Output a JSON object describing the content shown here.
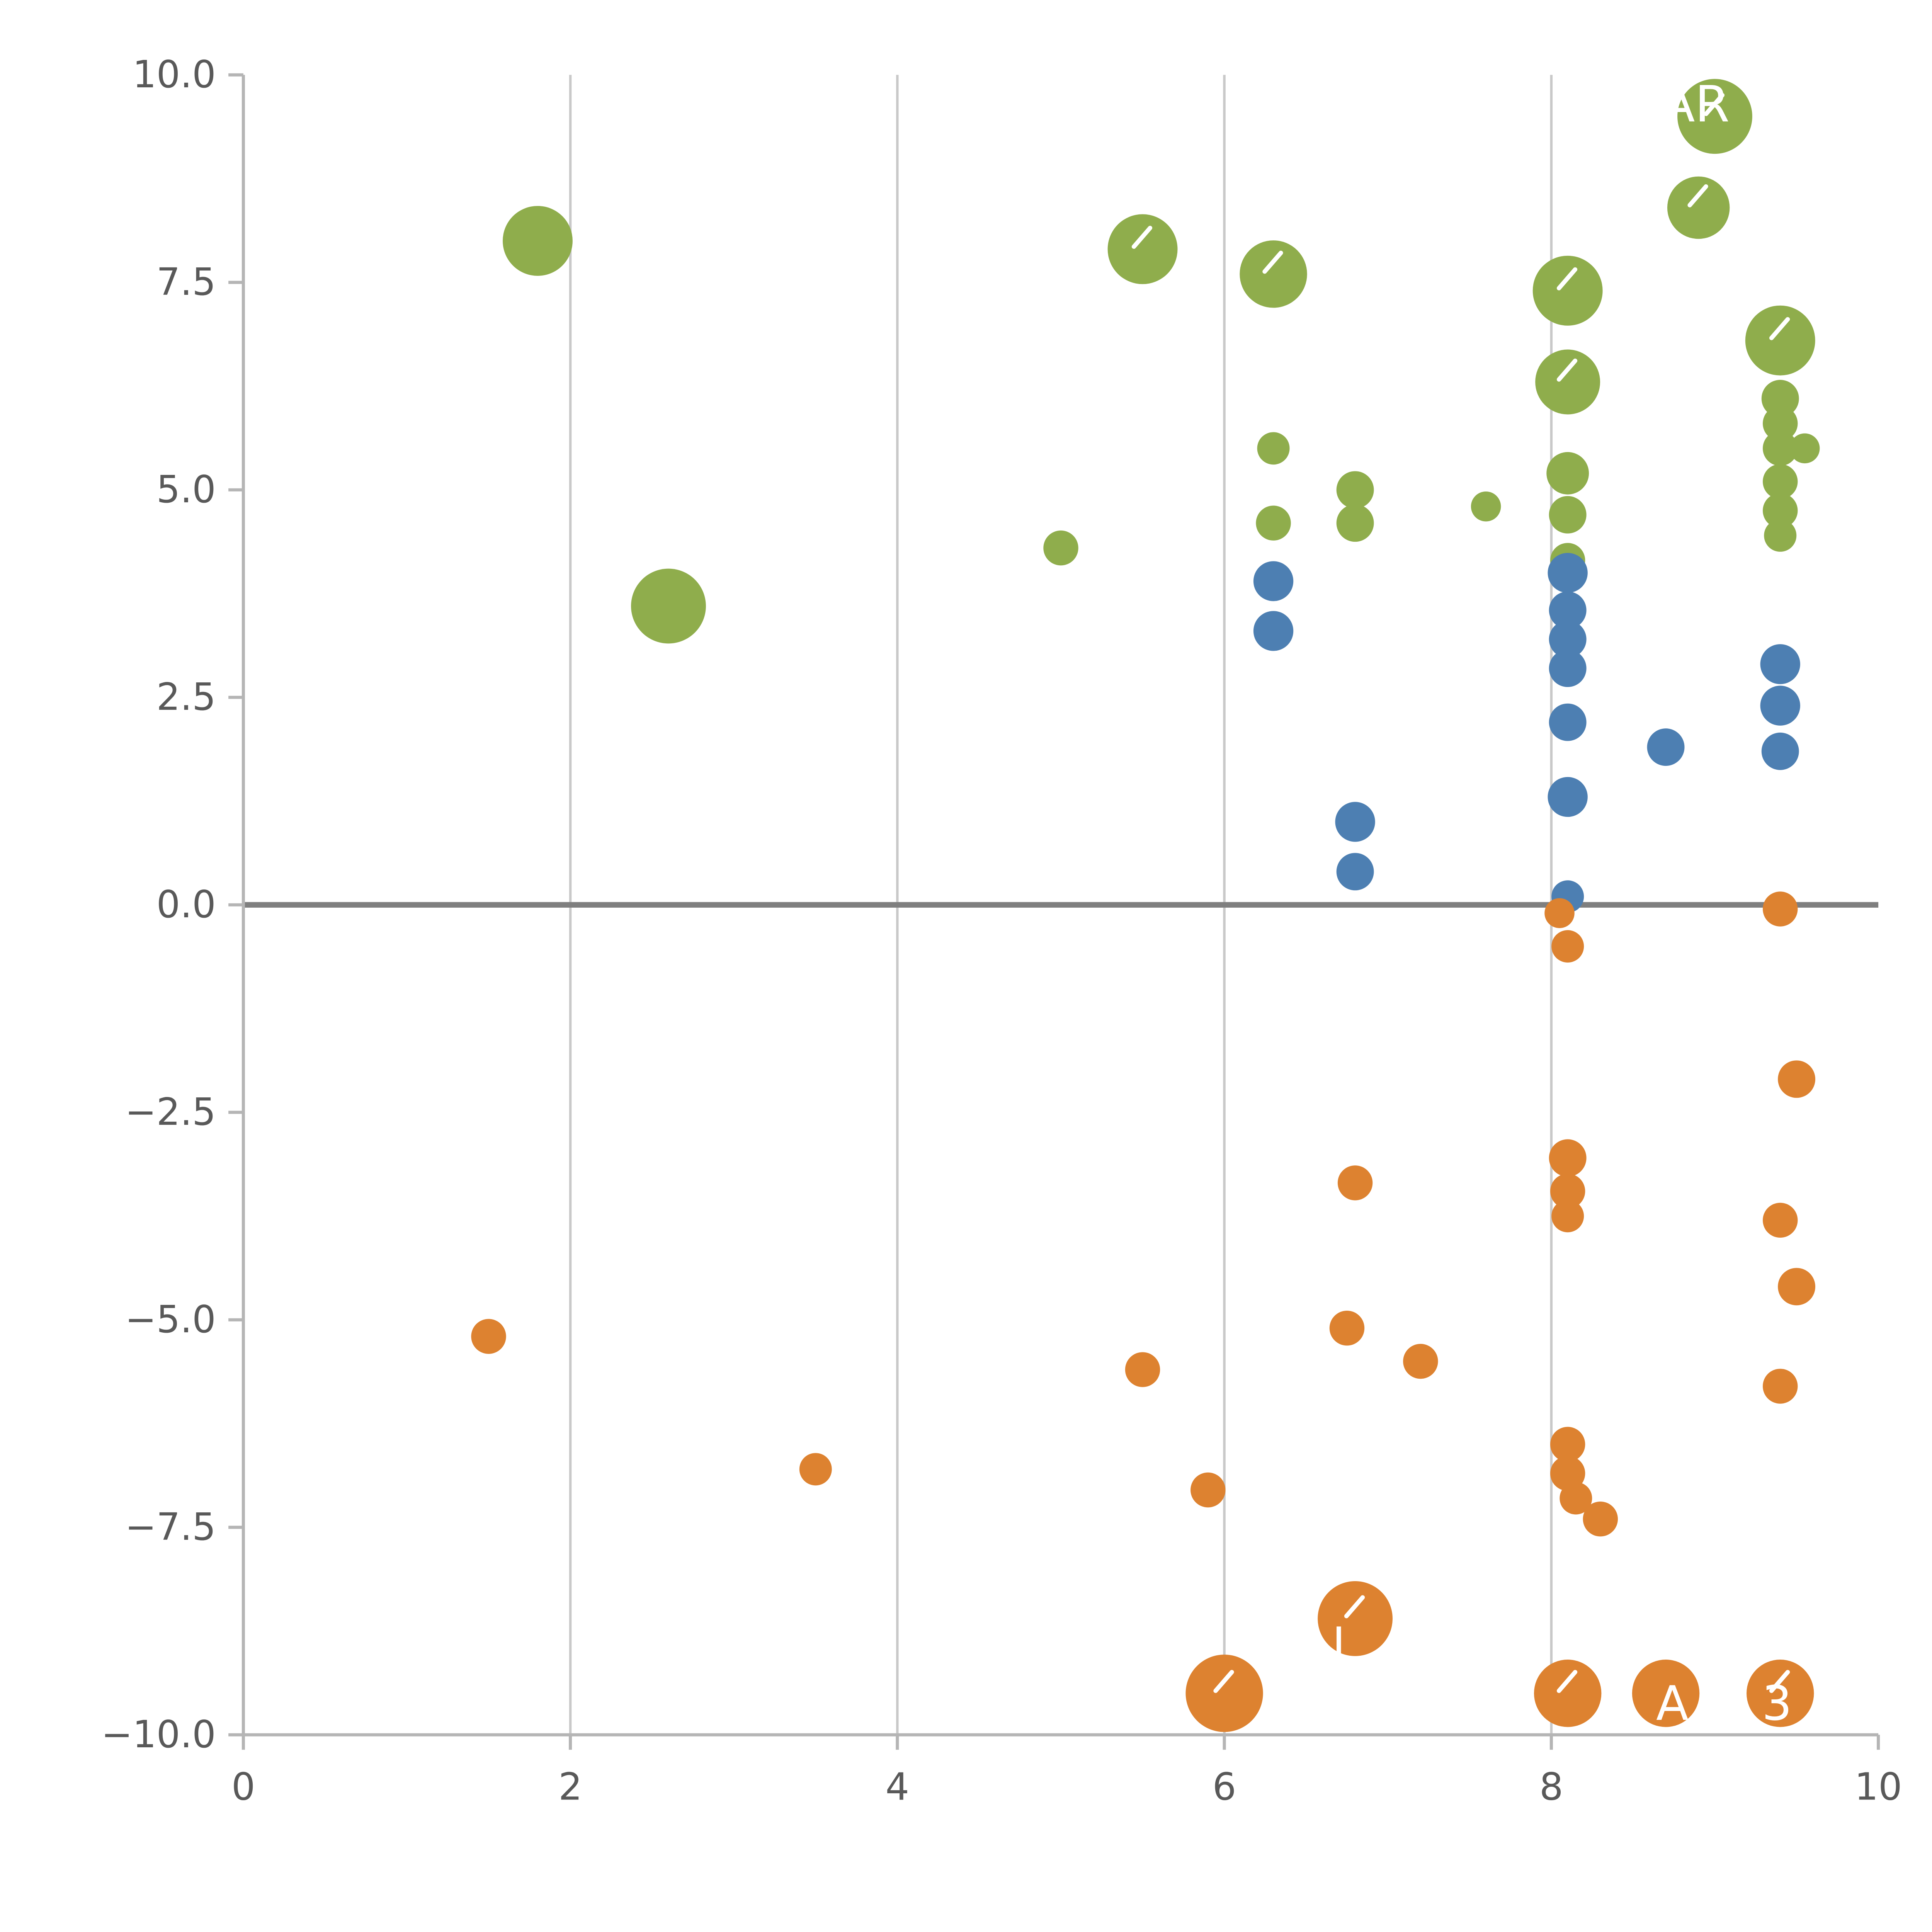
{
  "chart_data": {
    "type": "scatter",
    "title": "",
    "xlabel": "",
    "ylabel": "",
    "xlim": [
      0,
      10
    ],
    "ylim": [
      -10,
      10
    ],
    "x_tick_values": [
      0,
      2,
      4,
      6,
      8,
      10
    ],
    "x_tick_labels": [
      "0",
      "2",
      "4",
      "6",
      "8",
      "10"
    ],
    "y_tick_values": [
      -10,
      -7.5,
      -5,
      -2.5,
      0,
      2.5,
      5,
      7.5,
      10
    ],
    "y_tick_labels": [
      "−10.0",
      "−7.5",
      "−5.0",
      "−2.5",
      "0.0",
      "2.5",
      "5.0",
      "7.5",
      "10.0"
    ],
    "grid": {
      "vertical_at": [
        2,
        4,
        6,
        8
      ],
      "horizontal": false
    },
    "zero_line_y": 0,
    "legend": "none",
    "colors": {
      "green": "#8fad4c",
      "blue": "#4d7fb2",
      "orange": "#dd8230",
      "grid": "#c9c9c9",
      "spine": "#b5b5b5",
      "zero_line": "#7f7f7f",
      "tick_text": "#595959",
      "bubble_mark": "#ffffff"
    },
    "series": [
      {
        "name": "green",
        "color": "#8fad4c",
        "points": [
          {
            "x": 1.8,
            "y": 8.0,
            "r": 28,
            "mark": false
          },
          {
            "x": 2.6,
            "y": 3.6,
            "r": 30,
            "mark": false
          },
          {
            "x": 5.0,
            "y": 4.3,
            "r": 14,
            "mark": false
          },
          {
            "x": 5.5,
            "y": 7.9,
            "r": 28,
            "mark": true
          },
          {
            "x": 6.3,
            "y": 7.6,
            "r": 27,
            "mark": true
          },
          {
            "x": 6.3,
            "y": 5.5,
            "r": 13,
            "mark": false
          },
          {
            "x": 6.3,
            "y": 4.6,
            "r": 14,
            "mark": false
          },
          {
            "x": 6.8,
            "y": 5.0,
            "r": 15,
            "mark": false
          },
          {
            "x": 6.8,
            "y": 4.6,
            "r": 15,
            "mark": false
          },
          {
            "x": 7.6,
            "y": 4.8,
            "r": 12,
            "mark": false
          },
          {
            "x": 8.1,
            "y": 7.4,
            "r": 28,
            "mark": true
          },
          {
            "x": 8.1,
            "y": 6.3,
            "r": 26,
            "mark": true
          },
          {
            "x": 8.1,
            "y": 5.2,
            "r": 17,
            "mark": false
          },
          {
            "x": 8.1,
            "y": 4.7,
            "r": 15,
            "mark": false
          },
          {
            "x": 8.1,
            "y": 4.15,
            "r": 14,
            "mark": false
          },
          {
            "x": 8.9,
            "y": 8.4,
            "r": 25,
            "mark": true
          },
          {
            "x": 9.0,
            "y": 9.5,
            "r": 30,
            "mark": true
          },
          {
            "x": 9.4,
            "y": 6.8,
            "r": 28,
            "mark": true
          },
          {
            "x": 9.4,
            "y": 6.1,
            "r": 15,
            "mark": false
          },
          {
            "x": 9.4,
            "y": 5.8,
            "r": 14,
            "mark": false
          },
          {
            "x": 9.4,
            "y": 5.5,
            "r": 14,
            "mark": false
          },
          {
            "x": 9.55,
            "y": 5.5,
            "r": 12,
            "mark": false
          },
          {
            "x": 9.4,
            "y": 5.1,
            "r": 14,
            "mark": false
          },
          {
            "x": 9.4,
            "y": 4.75,
            "r": 14,
            "mark": false
          },
          {
            "x": 9.4,
            "y": 4.45,
            "r": 13,
            "mark": false
          }
        ]
      },
      {
        "name": "blue",
        "color": "#4d7fb2",
        "points": [
          {
            "x": 6.3,
            "y": 3.9,
            "r": 16,
            "mark": false
          },
          {
            "x": 6.3,
            "y": 3.3,
            "r": 16,
            "mark": false
          },
          {
            "x": 6.8,
            "y": 1.0,
            "r": 16,
            "mark": false
          },
          {
            "x": 6.8,
            "y": 0.4,
            "r": 15,
            "mark": false
          },
          {
            "x": 8.1,
            "y": 4.0,
            "r": 16,
            "mark": false
          },
          {
            "x": 8.1,
            "y": 3.55,
            "r": 15,
            "mark": false
          },
          {
            "x": 8.1,
            "y": 3.2,
            "r": 15,
            "mark": false
          },
          {
            "x": 8.1,
            "y": 2.85,
            "r": 15,
            "mark": false
          },
          {
            "x": 8.1,
            "y": 2.2,
            "r": 15,
            "mark": false
          },
          {
            "x": 8.1,
            "y": 1.3,
            "r": 16,
            "mark": false
          },
          {
            "x": 8.1,
            "y": 0.1,
            "r": 13,
            "mark": false
          },
          {
            "x": 8.7,
            "y": 1.9,
            "r": 15,
            "mark": false
          },
          {
            "x": 9.4,
            "y": 2.9,
            "r": 16,
            "mark": false
          },
          {
            "x": 9.4,
            "y": 2.4,
            "r": 16,
            "mark": false
          },
          {
            "x": 9.4,
            "y": 1.85,
            "r": 15,
            "mark": false
          }
        ]
      },
      {
        "name": "orange",
        "color": "#dd8230",
        "points": [
          {
            "x": 1.5,
            "y": -5.2,
            "r": 14,
            "mark": false
          },
          {
            "x": 3.5,
            "y": -6.8,
            "r": 13,
            "mark": false
          },
          {
            "x": 5.5,
            "y": -5.6,
            "r": 14,
            "mark": false
          },
          {
            "x": 5.9,
            "y": -7.05,
            "r": 14,
            "mark": false
          },
          {
            "x": 6.0,
            "y": -9.5,
            "r": 31,
            "mark": true
          },
          {
            "x": 6.8,
            "y": -3.35,
            "r": 14,
            "mark": false
          },
          {
            "x": 6.75,
            "y": -5.1,
            "r": 14,
            "mark": false
          },
          {
            "x": 7.2,
            "y": -5.5,
            "r": 14,
            "mark": false
          },
          {
            "x": 6.8,
            "y": -8.6,
            "r": 30,
            "mark": true
          },
          {
            "x": 8.05,
            "y": -0.1,
            "r": 12,
            "mark": false
          },
          {
            "x": 8.1,
            "y": -0.5,
            "r": 13,
            "mark": false
          },
          {
            "x": 8.1,
            "y": -3.05,
            "r": 15,
            "mark": false
          },
          {
            "x": 8.1,
            "y": -3.45,
            "r": 14,
            "mark": false
          },
          {
            "x": 8.1,
            "y": -3.75,
            "r": 13,
            "mark": false
          },
          {
            "x": 8.1,
            "y": -6.5,
            "r": 14,
            "mark": false
          },
          {
            "x": 8.1,
            "y": -6.85,
            "r": 14,
            "mark": false
          },
          {
            "x": 8.15,
            "y": -7.15,
            "r": 13,
            "mark": false
          },
          {
            "x": 8.3,
            "y": -7.4,
            "r": 14,
            "mark": false
          },
          {
            "x": 8.1,
            "y": -9.5,
            "r": 27,
            "mark": true
          },
          {
            "x": 8.7,
            "y": -9.5,
            "r": 27,
            "mark": false
          },
          {
            "x": 9.4,
            "y": -9.5,
            "r": 27,
            "mark": true
          },
          {
            "x": 9.4,
            "y": -0.05,
            "r": 14,
            "mark": false
          },
          {
            "x": 9.5,
            "y": -2.1,
            "r": 15,
            "mark": false
          },
          {
            "x": 9.4,
            "y": -3.8,
            "r": 14,
            "mark": false
          },
          {
            "x": 9.5,
            "y": -4.6,
            "r": 15,
            "mark": false
          },
          {
            "x": 9.4,
            "y": -5.8,
            "r": 14,
            "mark": false
          }
        ]
      }
    ],
    "point_labels": [
      {
        "text": "AR",
        "x": 8.88,
        "y": 9.65,
        "color": "#ffffff",
        "size": 40
      },
      {
        "text": "A",
        "x": 8.74,
        "y": -9.62,
        "color": "#ffffff",
        "size": 38
      },
      {
        "text": "3",
        "x": 9.38,
        "y": -9.62,
        "color": "#ffffff",
        "size": 38
      },
      {
        "text": "I",
        "x": 6.7,
        "y": -8.9,
        "color": "#ffffff",
        "size": 36
      }
    ]
  }
}
